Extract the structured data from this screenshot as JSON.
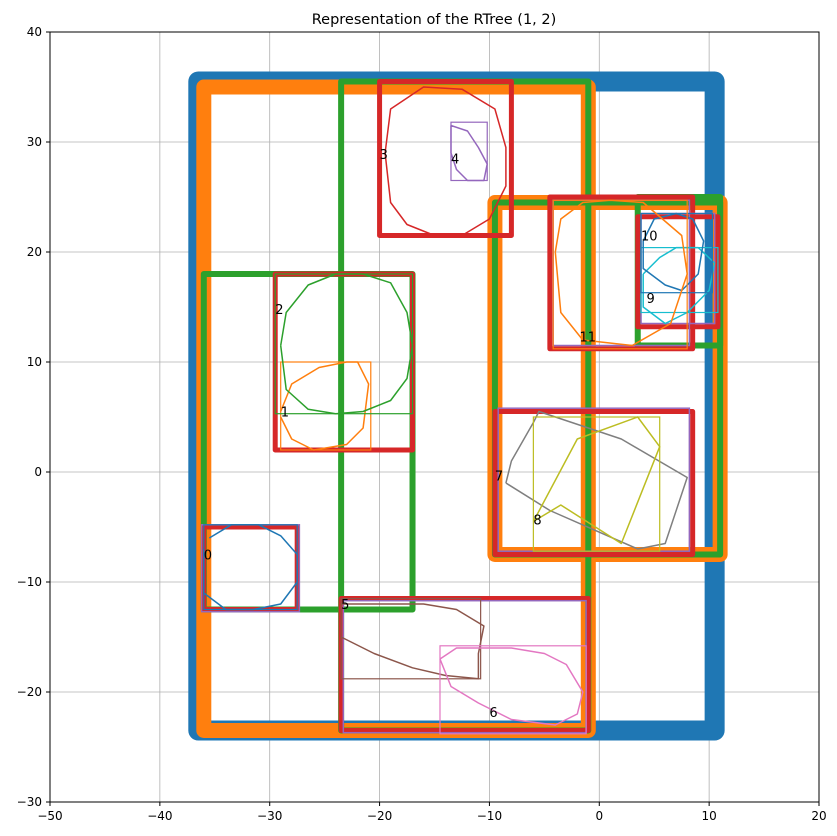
{
  "chart_data": {
    "type": "scatter",
    "title": "Representation of the RTree (1, 2)",
    "xlabel": "",
    "ylabel": "",
    "xlim": [
      -50,
      20
    ],
    "ylim": [
      -30,
      40
    ],
    "xticks": [
      -50,
      -40,
      -30,
      -20,
      -10,
      0,
      10,
      20
    ],
    "yticks": [
      -30,
      -20,
      -10,
      0,
      10,
      20,
      30,
      40
    ],
    "grid": true,
    "colors": {
      "blue": "#1f77b4",
      "orange": "#ff7f0e",
      "green": "#2ca02c",
      "red": "#d62728",
      "purple": "#9467bd",
      "brown": "#8c564b",
      "pink": "#e377c2",
      "gray": "#7f7f7f",
      "olive": "#bcbd22",
      "cyan": "#17becf"
    },
    "node_boxes": [
      {
        "level": "root",
        "color": "blue",
        "weight": "xl",
        "x0": -36.5,
        "y0": -23.5,
        "x1": 10.5,
        "y1": 35.5
      },
      {
        "level": "l1",
        "color": "orange",
        "weight": "l",
        "x0": -36,
        "y0": -23.5,
        "x1": -1,
        "y1": 35
      },
      {
        "level": "l1",
        "color": "orange",
        "weight": "l",
        "x0": -9.5,
        "y0": -7.5,
        "x1": 11,
        "y1": 24.5
      },
      {
        "level": "l2",
        "color": "green",
        "weight": "m",
        "x0": -23.5,
        "y0": -23.5,
        "x1": -1,
        "y1": 35.5
      },
      {
        "level": "l2",
        "color": "green",
        "weight": "m",
        "x0": -36,
        "y0": -12.5,
        "x1": -17,
        "y1": 18
      },
      {
        "level": "l2",
        "color": "green",
        "weight": "m",
        "x0": -9.5,
        "y0": -7.5,
        "x1": 11,
        "y1": 24.5
      },
      {
        "level": "l2",
        "color": "green",
        "weight": "m",
        "x0": 3.5,
        "y0": 11.5,
        "x1": 11,
        "y1": 25
      },
      {
        "level": "leaf",
        "color": "red",
        "weight": "s",
        "x0": -20,
        "y0": 21.5,
        "x1": -8,
        "y1": 35.5
      },
      {
        "level": "leaf",
        "color": "red",
        "weight": "s",
        "x0": -29.5,
        "y0": 2,
        "x1": -17,
        "y1": 18
      },
      {
        "level": "leaf",
        "color": "red",
        "weight": "s",
        "x0": -23.5,
        "y0": -23.5,
        "x1": -1,
        "y1": -11.5
      },
      {
        "level": "leaf",
        "color": "red",
        "weight": "s",
        "x0": -36,
        "y0": -12.5,
        "x1": -27.5,
        "y1": -5
      },
      {
        "level": "leaf",
        "color": "red",
        "weight": "s",
        "x0": -9.5,
        "y0": -7.5,
        "x1": 8.5,
        "y1": 5.5
      },
      {
        "level": "leaf",
        "color": "red",
        "weight": "s",
        "x0": -4.5,
        "y0": 11.2,
        "x1": 8.5,
        "y1": 25
      },
      {
        "level": "leaf",
        "color": "red",
        "weight": "s",
        "x0": 3.5,
        "y0": 13.2,
        "x1": 10.8,
        "y1": 23.2
      }
    ],
    "leaf_outlines": [
      {
        "color": "purple",
        "x0": -36.2,
        "y0": -12.7,
        "x1": -27.3,
        "y1": -4.8
      },
      {
        "color": "purple",
        "x0": -9.2,
        "y0": -7.2,
        "x1": 8.2,
        "y1": 5.8
      },
      {
        "color": "purple",
        "x0": -4.2,
        "y0": 11.5,
        "x1": 8.2,
        "y1": 24.7
      },
      {
        "color": "purple",
        "x0": 3.8,
        "y0": 13.5,
        "x1": 10.5,
        "y1": 23.5
      },
      {
        "color": "purple",
        "x0": -23.3,
        "y0": -23.7,
        "x1": -1.2,
        "y1": -11.7
      }
    ],
    "objects": [
      {
        "id": "0",
        "color": "blue",
        "points": [
          [
            -35.5,
            -6
          ],
          [
            -33.5,
            -4.8
          ],
          [
            -31,
            -4.8
          ],
          [
            -29,
            -5.8
          ],
          [
            -27.5,
            -7.5
          ],
          [
            -27.5,
            -10
          ],
          [
            -29,
            -12
          ],
          [
            -31.5,
            -12.5
          ],
          [
            -34,
            -12.5
          ],
          [
            -36,
            -11
          ],
          [
            -36,
            -7
          ]
        ],
        "bbox": [
          -36,
          -12.5,
          -27.5,
          -4.8
        ]
      },
      {
        "id": "1",
        "color": "orange",
        "points": [
          [
            -29,
            5.5
          ],
          [
            -28,
            8
          ],
          [
            -25.5,
            9.5
          ],
          [
            -23,
            10
          ],
          [
            -22,
            10
          ],
          [
            -21,
            8
          ],
          [
            -21.5,
            4
          ],
          [
            -23,
            2.5
          ],
          [
            -26,
            2
          ],
          [
            -28,
            3
          ],
          [
            -29,
            5
          ]
        ],
        "bbox": [
          -29,
          2,
          -20.8,
          10
        ]
      },
      {
        "id": "2",
        "color": "green",
        "points": [
          [
            -29,
            11.5
          ],
          [
            -28.5,
            14.5
          ],
          [
            -26.5,
            17
          ],
          [
            -24,
            18
          ],
          [
            -21.5,
            18
          ],
          [
            -19,
            17.2
          ],
          [
            -17.5,
            14.5
          ],
          [
            -17,
            11.5
          ],
          [
            -17.5,
            8.5
          ],
          [
            -19,
            6.5
          ],
          [
            -21.5,
            5.5
          ],
          [
            -24,
            5.3
          ],
          [
            -26.5,
            5.7
          ],
          [
            -28.5,
            7.5
          ],
          [
            -29,
            11.5
          ]
        ],
        "bbox": [
          -29.5,
          5.3,
          -17,
          18
        ]
      },
      {
        "id": "3",
        "color": "red",
        "points": [
          [
            -19.5,
            29
          ],
          [
            -19,
            24.5
          ],
          [
            -17.5,
            22.5
          ],
          [
            -15,
            21.5
          ],
          [
            -12.5,
            21.5
          ],
          [
            -10,
            23
          ],
          [
            -8.5,
            26
          ],
          [
            -8.5,
            29.5
          ],
          [
            -9.5,
            33
          ],
          [
            -12.5,
            34.8
          ],
          [
            -16,
            35
          ],
          [
            -19,
            33
          ],
          [
            -19.5,
            29
          ]
        ],
        "bbox": null
      },
      {
        "id": "4",
        "color": "purple",
        "points": [
          [
            -13.5,
            31.5
          ],
          [
            -12,
            31
          ],
          [
            -11,
            29.5
          ],
          [
            -10.2,
            28
          ],
          [
            -10.5,
            26.5
          ],
          [
            -12,
            26.5
          ],
          [
            -13,
            27.5
          ],
          [
            -13.5,
            29
          ],
          [
            -13.5,
            31.5
          ]
        ],
        "bbox": [
          -13.5,
          26.5,
          -10.2,
          31.8
        ]
      },
      {
        "id": "5",
        "color": "brown",
        "points": [
          [
            -23.5,
            -12
          ],
          [
            -20,
            -12
          ],
          [
            -16,
            -12
          ],
          [
            -13,
            -12.5
          ],
          [
            -10.5,
            -14
          ],
          [
            -11,
            -16.5
          ],
          [
            -11,
            -18.8
          ],
          [
            -14,
            -18.5
          ],
          [
            -17,
            -17.8
          ],
          [
            -20.5,
            -16.5
          ],
          [
            -23.5,
            -15
          ]
        ],
        "bbox": [
          -23.5,
          -18.8,
          -10.8,
          -11.5
        ]
      },
      {
        "id": "6",
        "color": "pink",
        "points": [
          [
            -14.5,
            -17
          ],
          [
            -13.5,
            -19.5
          ],
          [
            -11,
            -21
          ],
          [
            -8,
            -22.5
          ],
          [
            -4,
            -23
          ],
          [
            -2,
            -22
          ],
          [
            -1.5,
            -20
          ],
          [
            -3,
            -17.5
          ],
          [
            -5,
            -16.5
          ],
          [
            -8,
            -16
          ],
          [
            -13,
            -16
          ],
          [
            -14.5,
            -17
          ]
        ],
        "bbox": [
          -14.5,
          -23.8,
          -1.2,
          -15.8
        ]
      },
      {
        "id": "7",
        "color": "gray",
        "points": [
          [
            -8.5,
            -1
          ],
          [
            -8,
            1
          ],
          [
            -6,
            4.5
          ],
          [
            -5.5,
            5.5
          ],
          [
            2,
            3
          ],
          [
            8,
            -0.5
          ],
          [
            6,
            -6.5
          ],
          [
            3.5,
            -7
          ],
          [
            -4.5,
            -3.5
          ],
          [
            -8.5,
            -1
          ]
        ],
        "bbox": null
      },
      {
        "id": "8",
        "color": "olive",
        "points": [
          [
            -6,
            -4.5
          ],
          [
            -3.5,
            -3
          ],
          [
            2,
            -6.5
          ],
          [
            5.5,
            2.3
          ],
          [
            3.5,
            5
          ],
          [
            -2,
            3
          ],
          [
            -6,
            -4.5
          ]
        ],
        "bbox": [
          -6,
          -7.2,
          5.5,
          5
        ]
      },
      {
        "id": "9",
        "color": "cyan",
        "points": [
          [
            4,
            18
          ],
          [
            5.5,
            19.5
          ],
          [
            7,
            20.4
          ],
          [
            9,
            20.4
          ],
          [
            10.5,
            19
          ],
          [
            10,
            16.5
          ],
          [
            8,
            14.5
          ],
          [
            6,
            13.5
          ],
          [
            4,
            15
          ],
          [
            4,
            18
          ]
        ],
        "bbox": [
          3.8,
          14.5,
          10.8,
          20.4
        ]
      },
      {
        "id": "10",
        "color": "blue",
        "points": [
          [
            4,
            21
          ],
          [
            5,
            23
          ],
          [
            7,
            23.5
          ],
          [
            8.5,
            23
          ],
          [
            9.5,
            21
          ],
          [
            9,
            18
          ],
          [
            7.5,
            16.5
          ],
          [
            6,
            17
          ],
          [
            4,
            18.5
          ],
          [
            4,
            21
          ]
        ],
        "bbox": [
          3.8,
          16.3,
          10.3,
          23.5
        ]
      },
      {
        "id": "11",
        "color": "orange",
        "points": [
          [
            -4,
            20
          ],
          [
            -3.5,
            23
          ],
          [
            -1.5,
            24.5
          ],
          [
            1,
            24.7
          ],
          [
            4,
            24.5
          ],
          [
            7.5,
            21.5
          ],
          [
            8,
            18
          ],
          [
            6.5,
            13.5
          ],
          [
            3,
            11.5
          ],
          [
            -1.5,
            12
          ],
          [
            -3.5,
            14.5
          ],
          [
            -4,
            20
          ]
        ],
        "bbox": [
          -4.2,
          11.2,
          8,
          24.7
        ]
      }
    ],
    "labels": [
      {
        "text": "0",
        "x": -36,
        "y": -7.5
      },
      {
        "text": "1",
        "x": -29,
        "y": 5.5
      },
      {
        "text": "2",
        "x": -29.5,
        "y": 14.8
      },
      {
        "text": "3",
        "x": -20,
        "y": 28.9
      },
      {
        "text": "4",
        "x": -13.5,
        "y": 28.5
      },
      {
        "text": "5",
        "x": -23.5,
        "y": -12
      },
      {
        "text": "6",
        "x": -10,
        "y": -21.8
      },
      {
        "text": "7",
        "x": -9.5,
        "y": -0.3
      },
      {
        "text": "8",
        "x": -6,
        "y": -4.3
      },
      {
        "text": "9",
        "x": 4.3,
        "y": 15.8
      },
      {
        "text": "10",
        "x": 3.8,
        "y": 21.5
      },
      {
        "text": "11",
        "x": -1.8,
        "y": 12.3
      }
    ]
  }
}
